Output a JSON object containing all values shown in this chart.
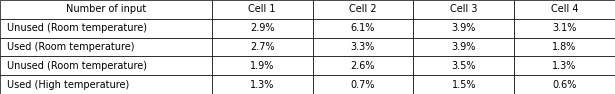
{
  "col_header": [
    "Number of input",
    "Cell 1",
    "Cell 2",
    "Cell 3",
    "Cell 4"
  ],
  "rows": [
    [
      "Unused (Room temperature)",
      "2.9%",
      "6.1%",
      "3.9%",
      "3.1%"
    ],
    [
      "Used (Room temperature)",
      "2.7%",
      "3.3%",
      "3.9%",
      "1.8%"
    ],
    [
      "Unused (Room temperature)",
      "1.9%",
      "2.6%",
      "3.5%",
      "1.3%"
    ],
    [
      "Used (High temperature)",
      "1.3%",
      "0.7%",
      "1.5%",
      "0.6%"
    ]
  ],
  "col_widths": [
    2.1,
    1.0,
    1.0,
    1.0,
    1.0
  ],
  "header_bg": "#ffffff",
  "cell_bg": "#ffffff",
  "border_color": "#000000",
  "font_size": 7.0,
  "header_font_size": 7.0,
  "figsize": [
    6.15,
    0.94
  ],
  "dpi": 100
}
